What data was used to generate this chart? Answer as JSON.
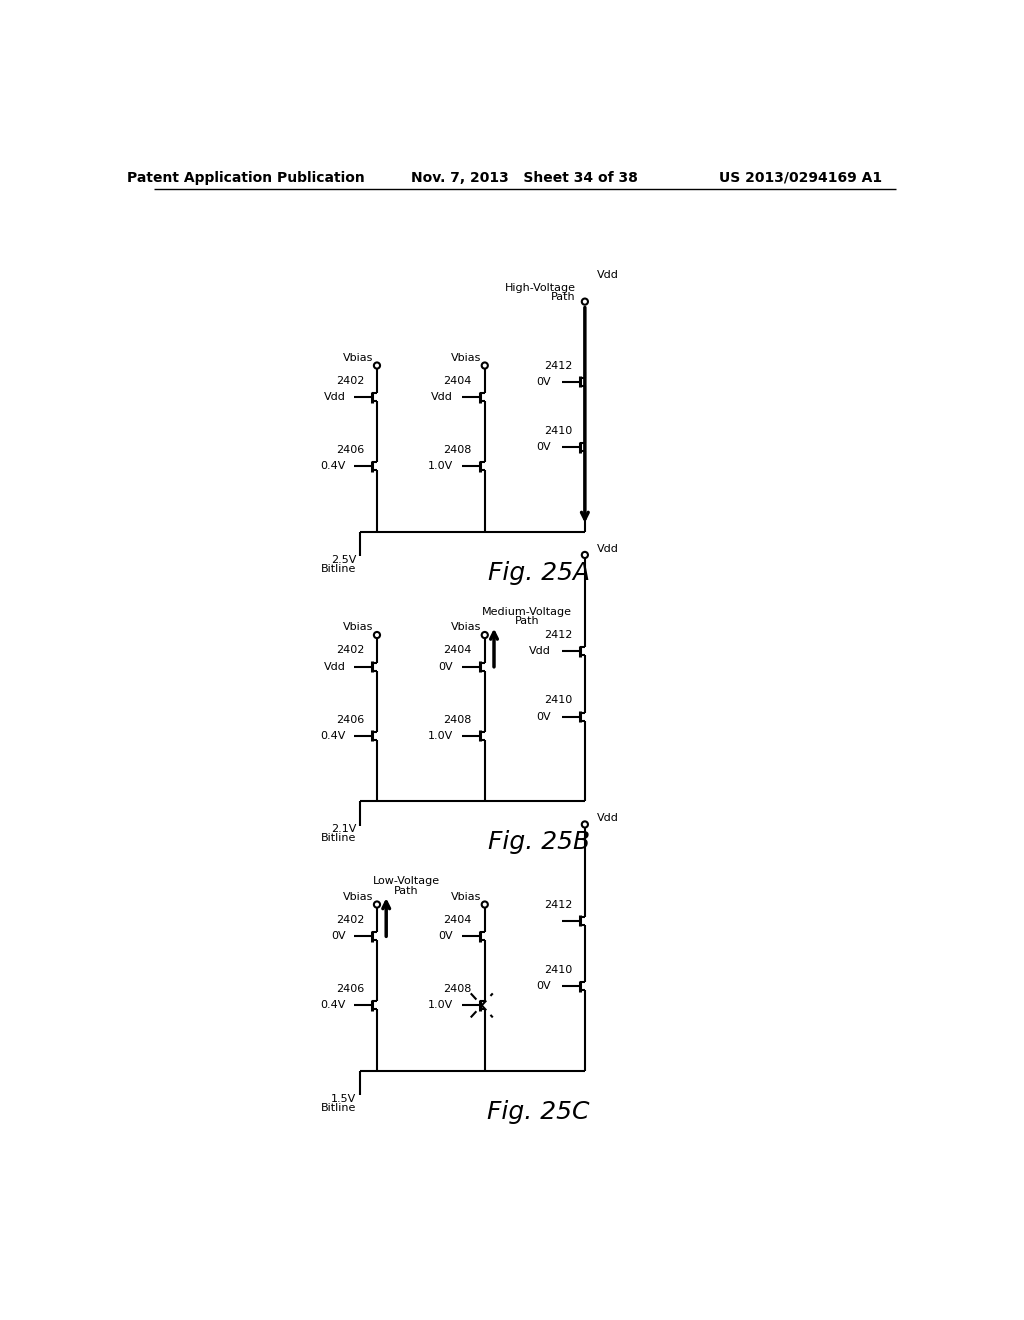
{
  "header_left": "Patent Application Publication",
  "header_mid": "Nov. 7, 2013   Sheet 34 of 38",
  "header_right": "US 2013/0294169 A1",
  "fig_labels": [
    "Fig. 25A",
    "Fig. 25B",
    "Fig. 25C"
  ],
  "path_labels_25a": [
    "High-Voltage",
    "Path"
  ],
  "path_labels_25b": [
    "Medium-Voltage",
    "Path"
  ],
  "path_labels_25c": [
    "Low-Voltage",
    "Path"
  ],
  "bitline_voltages": [
    "2.5V",
    "2.1V",
    "1.5V"
  ],
  "bg_color": "#ffffff",
  "line_color": "#000000"
}
